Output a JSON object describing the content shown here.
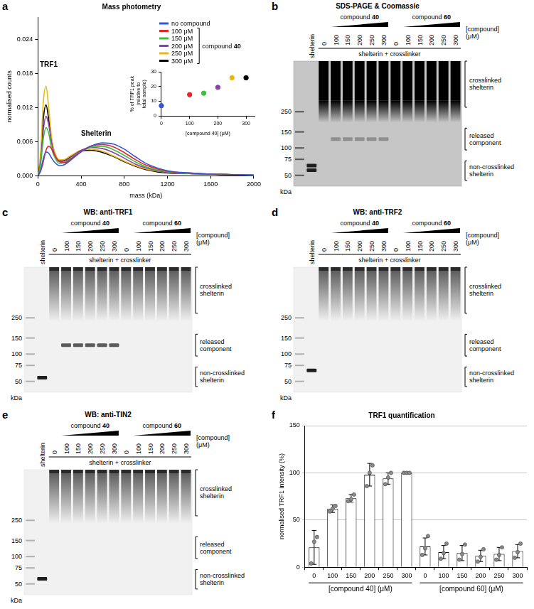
{
  "chart_data": [
    {
      "panel": "a",
      "type": "line",
      "title": "Mass photometry",
      "xlabel": "mass (kDa)",
      "ylabel": "normalised counts",
      "x": [
        0,
        25,
        50,
        75,
        100,
        125,
        150,
        200,
        250,
        300,
        400,
        500,
        600,
        700,
        800,
        900,
        1000,
        1200,
        1400,
        1600,
        1800,
        2000
      ],
      "series": [
        {
          "name": "no compound",
          "color": "#3557d4",
          "values": [
            0,
            0.001,
            0.003,
            0.0042,
            0.004,
            0.0032,
            0.0025,
            0.0018,
            0.002,
            0.0027,
            0.0042,
            0.0053,
            0.0058,
            0.0056,
            0.0047,
            0.0034,
            0.0022,
            0.0009,
            0.0005,
            0.0003,
            0.0002,
            0.0001
          ]
        },
        {
          "name": "100 μM",
          "color": "#e3262b",
          "values": [
            0,
            0.0008,
            0.0025,
            0.0045,
            0.0052,
            0.0048,
            0.0038,
            0.0025,
            0.0023,
            0.0029,
            0.0043,
            0.0053,
            0.0055,
            0.0051,
            0.0041,
            0.0029,
            0.0019,
            0.0008,
            0.0005,
            0.0003,
            0.0002,
            0.0001
          ]
        },
        {
          "name": "150 μM",
          "color": "#3cbf3c",
          "values": [
            0,
            0.002,
            0.0065,
            0.0085,
            0.0075,
            0.005,
            0.0035,
            0.0022,
            0.0024,
            0.003,
            0.0043,
            0.0051,
            0.0052,
            0.0046,
            0.0036,
            0.0025,
            0.0016,
            0.0007,
            0.0004,
            0.0003,
            0.0002,
            0.0001
          ]
        },
        {
          "name": "200 μM",
          "color": "#8b3fae",
          "values": [
            0,
            0.0025,
            0.008,
            0.0105,
            0.009,
            0.006,
            0.004,
            0.0025,
            0.0026,
            0.0032,
            0.0045,
            0.005,
            0.0048,
            0.0041,
            0.0031,
            0.0021,
            0.0014,
            0.0006,
            0.0004,
            0.0003,
            0.0002,
            0.0001
          ]
        },
        {
          "name": "250 μM",
          "color": "#e8b90c",
          "values": [
            0,
            0.004,
            0.013,
            0.0158,
            0.012,
            0.007,
            0.0045,
            0.0028,
            0.0029,
            0.0035,
            0.0045,
            0.0047,
            0.0043,
            0.0035,
            0.0026,
            0.0018,
            0.0012,
            0.0006,
            0.0004,
            0.0003,
            0.0002,
            0.0001
          ]
        },
        {
          "name": "300 μM",
          "color": "#000000",
          "values": [
            0,
            0.003,
            0.01,
            0.0125,
            0.01,
            0.0065,
            0.0043,
            0.0027,
            0.0028,
            0.0034,
            0.0044,
            0.0045,
            0.0041,
            0.0034,
            0.0025,
            0.0017,
            0.0011,
            0.0005,
            0.0004,
            0.0003,
            0.0002,
            0.0001
          ]
        }
      ],
      "xlim": [
        0,
        2000
      ],
      "xticks": [
        0,
        400,
        800,
        1200,
        1600,
        2000
      ],
      "ylim": [
        0,
        0.028
      ],
      "yticks": [
        {
          "value": 0,
          "label": "0.000"
        },
        {
          "value": 0.006,
          "label": "0.006"
        },
        {
          "value": 0.012,
          "label": "0.012"
        },
        {
          "value": 0.018,
          "label": "0.018"
        },
        {
          "value": 0.024,
          "label": "0.024"
        }
      ],
      "grid": false,
      "legend": "upper right",
      "legend_bracket": "compound 40",
      "annotations": [
        "TRF1",
        "Shelterin"
      ],
      "inset": {
        "type": "scatter",
        "xlabel": "[compound 40] (μM)",
        "ylabel": "% of TRF1 peak (relative to total sample)",
        "x": [
          0,
          100,
          150,
          200,
          250,
          300
        ],
        "values": [
          7,
          14.5,
          15.5,
          19.5,
          26,
          26
        ],
        "colors": [
          "#3557d4",
          "#e3262b",
          "#3cbf3c",
          "#8b3fae",
          "#e8b90c",
          "#000000"
        ],
        "xlim": [
          0,
          330
        ],
        "xticks": [
          0,
          100,
          200,
          300
        ],
        "ylim": [
          0,
          30
        ],
        "yticks": [
          0,
          10,
          20,
          30
        ],
        "grid": false
      }
    },
    {
      "panel": "f",
      "type": "bar",
      "title": "TRF1 quantification",
      "ylabel": "normalised TRF1 intensity (%)",
      "groups": [
        {
          "label": "[compound 40] (μM)",
          "categories": [
            0,
            100,
            150,
            200,
            250,
            300
          ],
          "values": [
            21,
            62,
            73,
            98,
            94,
            100
          ],
          "errors": [
            18,
            4,
            4,
            12,
            6,
            0
          ],
          "points": [
            [
              4,
              27,
              32
            ],
            [
              59,
              62,
              65
            ],
            [
              70,
              72,
              77
            ],
            [
              86,
              100,
              108
            ],
            [
              88,
              95,
              100
            ],
            [
              100,
              100,
              100
            ]
          ]
        },
        {
          "label": "[compound 60] (μM)",
          "categories": [
            0,
            100,
            150,
            200,
            250,
            300
          ],
          "values": [
            22,
            16,
            15,
            12,
            14,
            17
          ],
          "errors": [
            9,
            7,
            8,
            6,
            7,
            7
          ],
          "points": [
            [
              13,
              20,
              33
            ],
            [
              9,
              15,
              25
            ],
            [
              8,
              14,
              24
            ],
            [
              6,
              11,
              19
            ],
            [
              8,
              13,
              21
            ],
            [
              10,
              16,
              25
            ]
          ]
        }
      ],
      "color": "#ffffff",
      "ylim": [
        0,
        150
      ],
      "yticks": [
        0,
        50,
        100,
        150
      ],
      "grid": true
    }
  ],
  "gels": [
    {
      "panel": "b",
      "title": "SDS-PAGE & Coomassie",
      "style": "coomassie",
      "marker_kda": [
        250,
        150,
        100,
        75,
        50
      ],
      "kda_label": "kDa",
      "reference_lane": "shelterin",
      "reference_band_kda": [
        64,
        57
      ],
      "groups": [
        {
          "label": "compound 40",
          "concentrations": [
            0,
            100,
            150,
            200,
            250,
            300
          ]
        },
        {
          "label": "compound 60",
          "concentrations": [
            0,
            100,
            150,
            200,
            250,
            300
          ]
        }
      ],
      "concentration_label": "[compound] (μM)",
      "treatment": "shelterin + crosslinker",
      "regions": [
        "crosslinked shelterin",
        "released component",
        "non-crosslinked shelterin"
      ],
      "released_band": [
        false,
        true,
        true,
        true,
        true,
        true,
        false,
        false,
        false,
        false,
        false,
        false
      ]
    },
    {
      "panel": "c",
      "title": "WB: anti-TRF1",
      "style": "western",
      "marker_kda": [
        250,
        150,
        100,
        75,
        50
      ],
      "kda_label": "kDa",
      "reference_lane": "shelterin",
      "reference_band_kda": [
        55
      ],
      "groups": [
        {
          "label": "compound 40",
          "concentrations": [
            0,
            100,
            150,
            200,
            250,
            300
          ]
        },
        {
          "label": "compound 60",
          "concentrations": [
            0,
            100,
            150,
            200,
            250,
            300
          ]
        }
      ],
      "concentration_label": "[compound] (μM)",
      "treatment": "shelterin + crosslinker",
      "regions": [
        "crosslinked shelterin",
        "released component",
        "non-crosslinked shelterin"
      ],
      "released_band": [
        false,
        true,
        true,
        true,
        true,
        true,
        false,
        false,
        false,
        false,
        false,
        false
      ]
    },
    {
      "panel": "d",
      "title": "WB: anti-TRF2",
      "style": "western",
      "marker_kda": [
        250,
        150,
        100,
        75,
        50
      ],
      "kda_label": "kDa",
      "reference_lane": "shelterin",
      "reference_band_kda": [
        66
      ],
      "groups": [
        {
          "label": "compound 40",
          "concentrations": [
            0,
            100,
            150,
            200,
            250,
            300
          ]
        },
        {
          "label": "compound 60",
          "concentrations": [
            0,
            100,
            150,
            200,
            250,
            300
          ]
        }
      ],
      "concentration_label": "[compound] (μM)",
      "treatment": "shelterin + crosslinker",
      "regions": [
        "crosslinked shelterin",
        "released component",
        "non-crosslinked shelterin"
      ],
      "released_band": [
        false,
        false,
        false,
        false,
        false,
        false,
        false,
        false,
        false,
        false,
        false,
        false
      ]
    },
    {
      "panel": "e",
      "title": "WB: anti-TIN2",
      "style": "western",
      "marker_kda": [
        250,
        150,
        100,
        75,
        50
      ],
      "kda_label": "kDa",
      "reference_lane": "shelterin",
      "reference_band_kda": [
        57
      ],
      "groups": [
        {
          "label": "compound 40",
          "concentrations": [
            0,
            100,
            150,
            200,
            250,
            300
          ]
        },
        {
          "label": "compound 60",
          "concentrations": [
            0,
            100,
            150,
            200,
            250,
            300
          ]
        }
      ],
      "concentration_label": "[compound] (μM)",
      "treatment": "shelterin + crosslinker",
      "regions": [
        "crosslinked shelterin",
        "released component",
        "non-crosslinked shelterin"
      ],
      "released_band": [
        false,
        false,
        false,
        false,
        false,
        false,
        false,
        false,
        false,
        false,
        false,
        false
      ]
    }
  ]
}
